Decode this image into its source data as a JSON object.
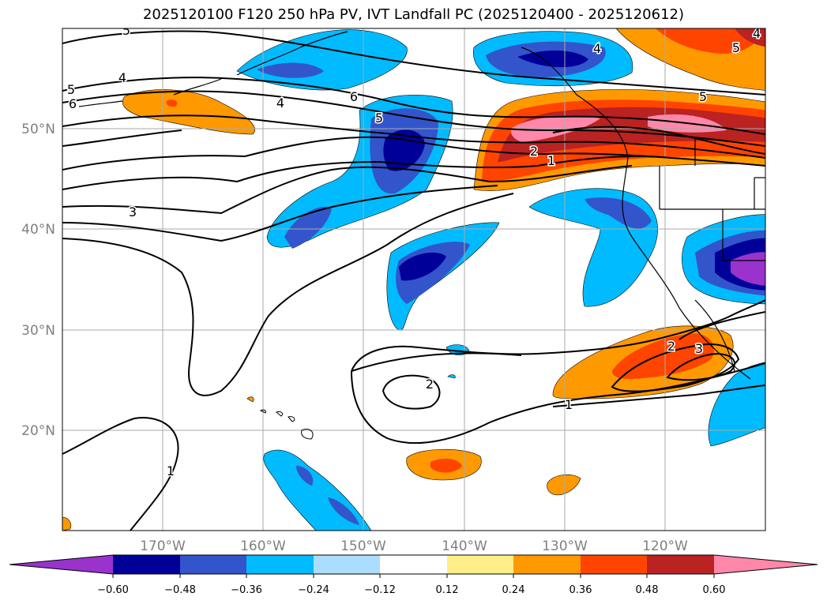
{
  "title": "2025120100 F120 250 hPa PV, IVT Landfall PC (2025120400 - 2025120612)",
  "map": {
    "lon_range": [
      -180,
      -110
    ],
    "lat_range": [
      10,
      60
    ],
    "lat_ticks": [
      "50°N",
      "40°N",
      "30°N",
      "20°N"
    ],
    "lon_ticks": [
      "170°W",
      "160°W",
      "150°W",
      "140°W",
      "130°W",
      "120°W"
    ],
    "contour_labels": [
      "5",
      "4",
      "5",
      "6",
      "4",
      "6",
      "5",
      "4",
      "5",
      "4",
      "5",
      "2",
      "1",
      "3",
      "2",
      "2",
      "3",
      "1",
      "1"
    ]
  },
  "colorbar": {
    "tick_labels": [
      "−0.60",
      "−0.48",
      "−0.36",
      "−0.24",
      "−0.12",
      "0.12",
      "0.24",
      "0.36",
      "0.48",
      "0.60"
    ],
    "colors": [
      "#9933cc",
      "#000099",
      "#3355cc",
      "#00bbff",
      "#aaddff",
      "#ffffff",
      "#ffee88",
      "#ff9900",
      "#ff4400",
      "#bb2222",
      "#ff88aa"
    ]
  }
}
